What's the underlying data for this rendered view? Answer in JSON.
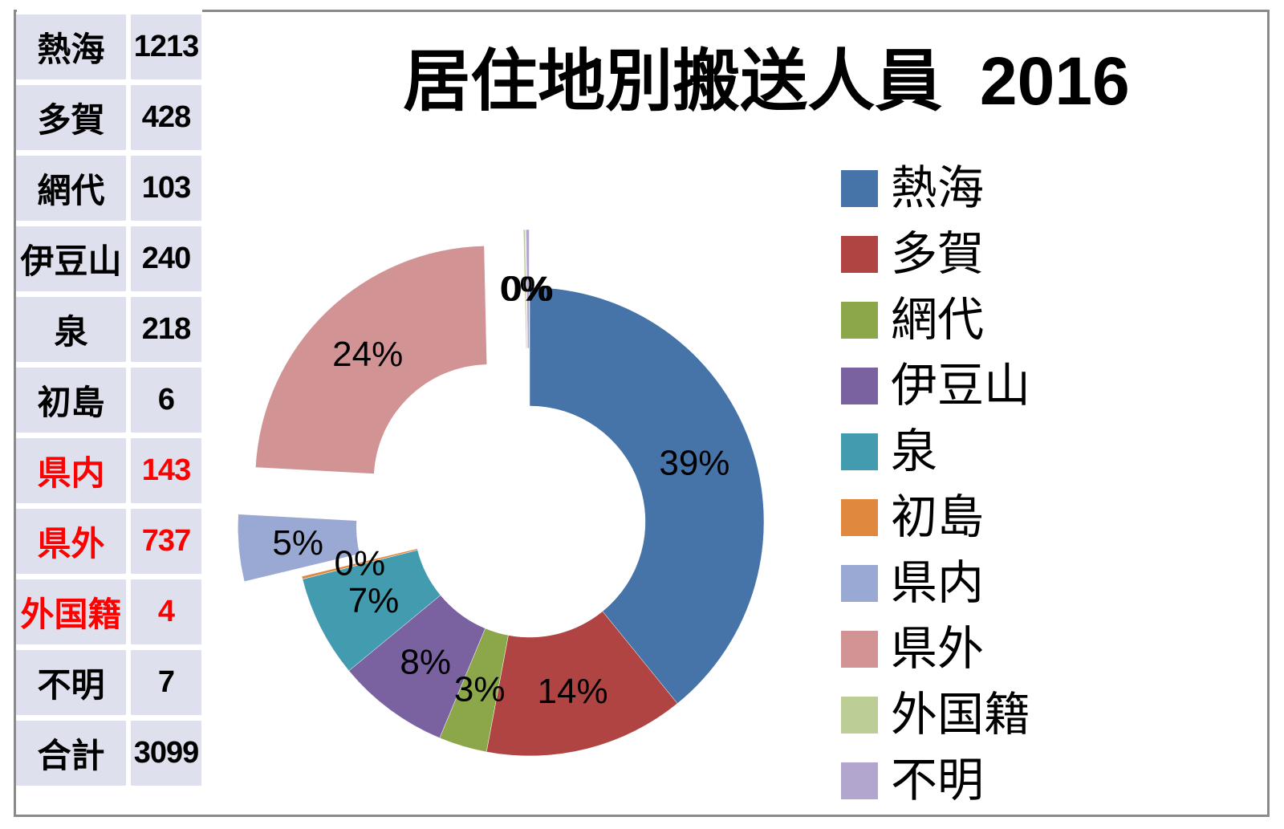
{
  "title": "居住地別搬送人員  2016",
  "table": {
    "rows": [
      {
        "label": "熱海",
        "value": "1213",
        "highlight": false
      },
      {
        "label": "多賀",
        "value": "428",
        "highlight": false
      },
      {
        "label": "網代",
        "value": "103",
        "highlight": false
      },
      {
        "label": "伊豆山",
        "value": "240",
        "highlight": false
      },
      {
        "label": "泉",
        "value": "218",
        "highlight": false
      },
      {
        "label": "初島",
        "value": "6",
        "highlight": false
      },
      {
        "label": "県内",
        "value": "143",
        "highlight": true
      },
      {
        "label": "県外",
        "value": "737",
        "highlight": true
      },
      {
        "label": "外国籍",
        "value": "4",
        "highlight": true
      },
      {
        "label": "不明",
        "value": "7",
        "highlight": false
      },
      {
        "label": "合計",
        "value": "3099",
        "highlight": false
      }
    ],
    "highlight_color": "#ff0000",
    "cell_background": "#dee1ed"
  },
  "chart_data": {
    "type": "pie",
    "subtype": "exploded-donut",
    "title": "居住地別搬送人員 2016",
    "categories": [
      "熱海",
      "多賀",
      "網代",
      "伊豆山",
      "泉",
      "初島",
      "県内",
      "県外",
      "外国籍",
      "不明"
    ],
    "values": [
      1213,
      428,
      103,
      240,
      218,
      6,
      143,
      737,
      4,
      7
    ],
    "total": 3099,
    "percent_labels": [
      "39%",
      "14%",
      "3%",
      "8%",
      "7%",
      "0%",
      "5%",
      "24%",
      "0%",
      "0%"
    ],
    "colors": [
      "#4673A8",
      "#AF4443",
      "#8CA74A",
      "#7A62A1",
      "#429BAF",
      "#E0883D",
      "#9AA9D3",
      "#D29394",
      "#BCCD96",
      "#B3A6CE"
    ],
    "exploded": [
      false,
      false,
      false,
      false,
      false,
      false,
      true,
      true,
      true,
      true
    ],
    "start_angle_deg": 0,
    "direction": "clockwise",
    "donut_hole_ratio": 0.49,
    "legend_position": "right",
    "data_labels": "percent, best-fit inside"
  }
}
